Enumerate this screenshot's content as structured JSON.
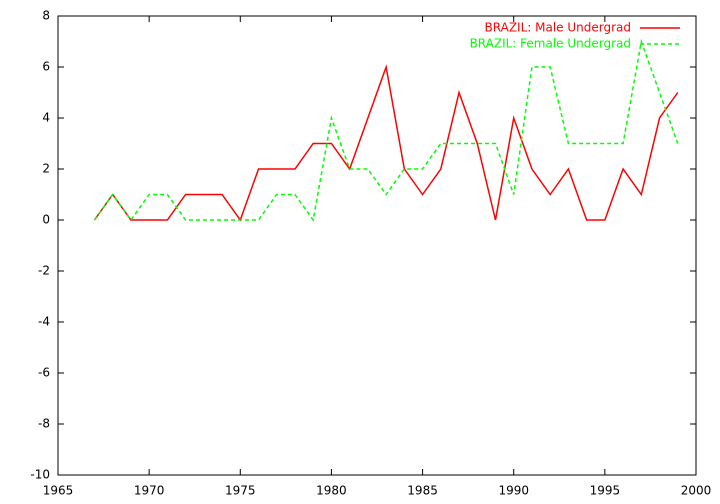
{
  "chart_data": {
    "type": "line",
    "x": [
      1967,
      1968,
      1969,
      1970,
      1971,
      1972,
      1973,
      1974,
      1975,
      1976,
      1977,
      1978,
      1979,
      1980,
      1981,
      1982,
      1983,
      1984,
      1985,
      1986,
      1987,
      1988,
      1989,
      1990,
      1991,
      1992,
      1993,
      1994,
      1995,
      1996,
      1997,
      1998,
      1999
    ],
    "series": [
      {
        "name": "BRAZIL: Male Undergrad",
        "color": "#ff0000",
        "style": "solid",
        "values": [
          0,
          1,
          0,
          0,
          0,
          1,
          1,
          1,
          0,
          2,
          2,
          2,
          3,
          3,
          2,
          4,
          6,
          2,
          1,
          2,
          5,
          3,
          0,
          4,
          2,
          1,
          2,
          0,
          0,
          2,
          1,
          4,
          5
        ]
      },
      {
        "name": "BRAZIL: Female Undergrad",
        "color": "#00ff00",
        "style": "dashed",
        "values": [
          0,
          1,
          0,
          1,
          1,
          0,
          0,
          0,
          0,
          0,
          1,
          1,
          0,
          4,
          2,
          2,
          1,
          2,
          2,
          3,
          3,
          3,
          3,
          1,
          6,
          6,
          3,
          3,
          3,
          3,
          7,
          5,
          3
        ]
      }
    ],
    "xlim": [
      1965,
      2000
    ],
    "xticks": [
      1965,
      1970,
      1975,
      1980,
      1985,
      1990,
      1995,
      2000
    ],
    "ylim": [
      -10,
      8
    ],
    "yticks": [
      -10,
      -8,
      -6,
      -4,
      -2,
      0,
      2,
      4,
      6,
      8
    ],
    "legend": "top-right"
  }
}
